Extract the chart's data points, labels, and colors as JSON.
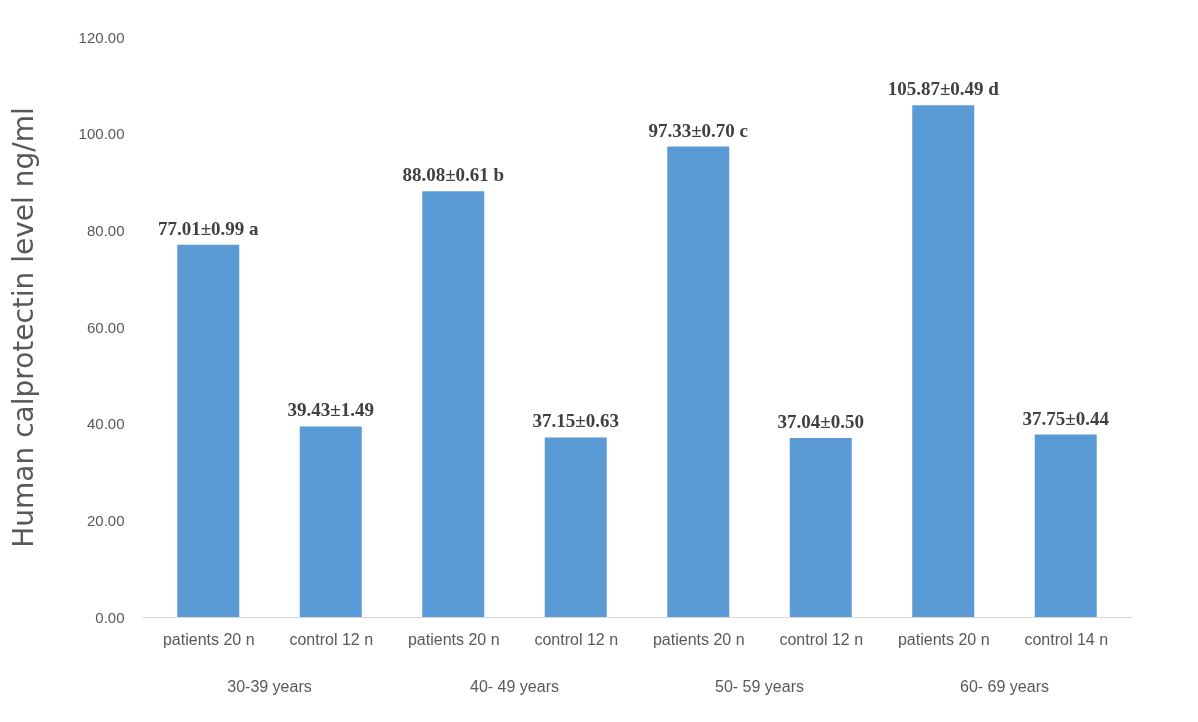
{
  "chart_data": {
    "type": "bar",
    "ylabel": "Human calprotectin level ng/ml",
    "categories": [
      "patients 20 n",
      "control 12 n",
      "patients 20 n",
      "control 12 n",
      "patients 20 n",
      "control 12 n",
      "patients 20 n",
      "control 14 n"
    ],
    "values": [
      77.01,
      39.43,
      88.08,
      37.15,
      97.33,
      37.04,
      105.87,
      37.75
    ],
    "value_labels": [
      "77.01±0.99 a",
      "39.43±1.49",
      "88.08±0.61 b",
      "37.15±0.63",
      "97.33±0.70 c",
      "37.04±0.50",
      "105.87±0.49 d",
      "37.75±0.44"
    ],
    "color": "#5b9bd5",
    "ylim": [
      0,
      120
    ],
    "yticks": [
      {
        "value": 0,
        "label": "0.00"
      },
      {
        "value": 20,
        "label": "20.00"
      },
      {
        "value": 40,
        "label": "40.00"
      },
      {
        "value": 60,
        "label": "60.00"
      },
      {
        "value": 80,
        "label": "80.00"
      },
      {
        "value": 100,
        "label": "100.00"
      },
      {
        "value": 120,
        "label": "120.00"
      }
    ],
    "grid": false,
    "annotations": [
      "30-39 years",
      "40- 49 years",
      "50- 59 years",
      "60- 69 years"
    ]
  }
}
